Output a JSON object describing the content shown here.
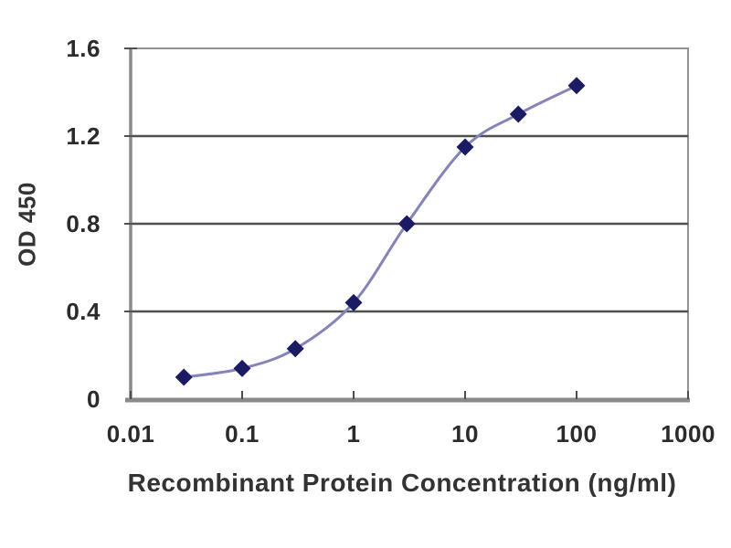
{
  "colors": {
    "line": "#8484b8",
    "marker": "#1b1b63",
    "grid": "#4f4f4f",
    "axis": "#8a8a8a",
    "border": "#939393",
    "text": "#2b2b2b",
    "background": "#ffffff"
  },
  "chart_data": {
    "type": "line",
    "title": "",
    "xlabel": "Recombinant Protein Concentration (ng/ml)",
    "ylabel": "OD 450",
    "x_scale": "log",
    "xlim": [
      0.01,
      1000
    ],
    "ylim": [
      0,
      1.6
    ],
    "x_ticks": [
      0.01,
      0.1,
      1,
      10,
      100,
      1000
    ],
    "x_tick_labels": [
      "0.01",
      "0.1",
      "1",
      "10",
      "100",
      "1000"
    ],
    "y_ticks": [
      0,
      0.4,
      0.8,
      1.2,
      1.6
    ],
    "y_tick_labels": [
      "0",
      "0.4",
      "0.8",
      "1.2",
      "1.6"
    ],
    "grid": "horizontal",
    "legend": "none",
    "series": [
      {
        "name": "OD 450",
        "marker": "diamond",
        "x": [
          0.03,
          0.1,
          0.3,
          1,
          3,
          10,
          30,
          100
        ],
        "y": [
          0.1,
          0.14,
          0.23,
          0.44,
          0.8,
          1.15,
          1.3,
          1.43
        ]
      }
    ]
  }
}
